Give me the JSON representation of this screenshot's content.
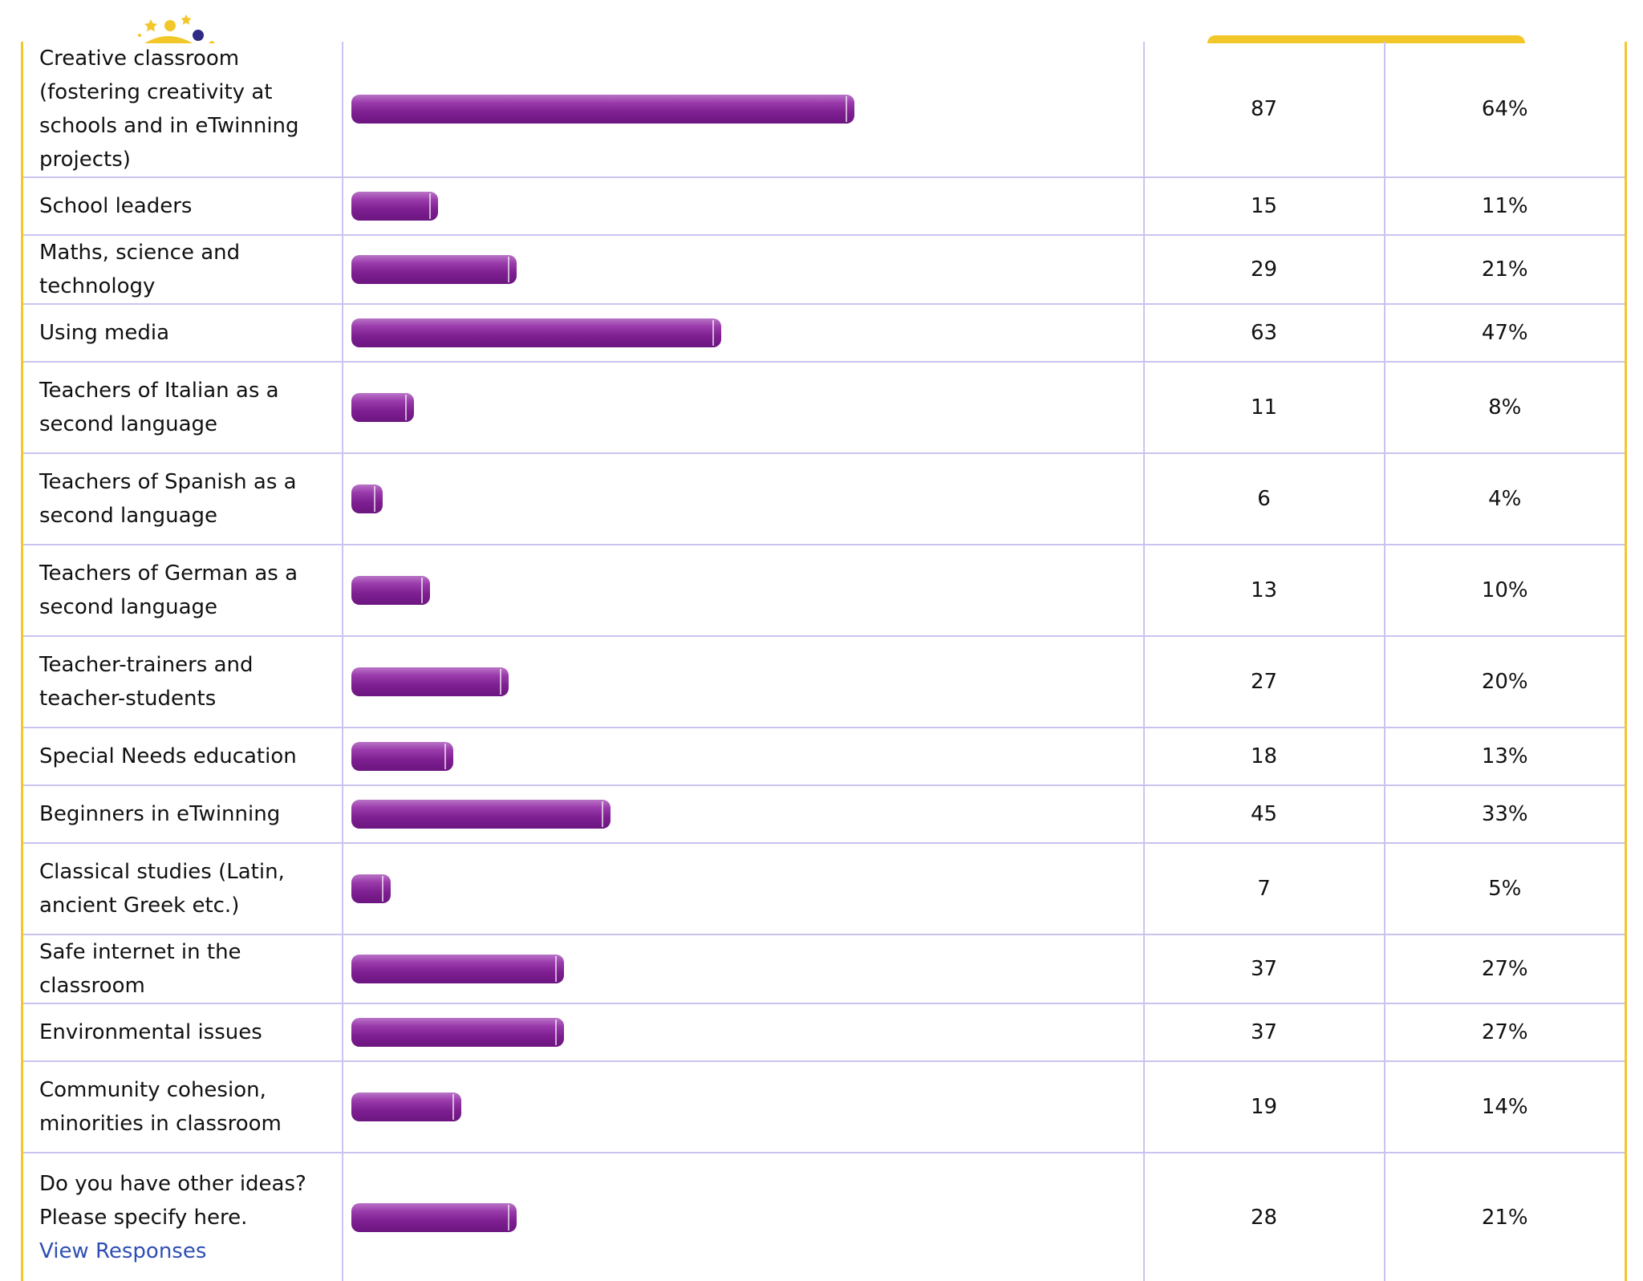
{
  "results": {
    "rows": [
      {
        "label": "Creative classroom (fostering creativity at schools and in eTwinning projects)",
        "count": "87",
        "percent": "64%",
        "fraction": 0.64
      },
      {
        "label": "School leaders",
        "count": "15",
        "percent": "11%",
        "fraction": 0.11
      },
      {
        "label": "Maths, science and technology",
        "count": "29",
        "percent": "21%",
        "fraction": 0.21
      },
      {
        "label": "Using media",
        "count": "63",
        "percent": "47%",
        "fraction": 0.47
      },
      {
        "label": "Teachers of Italian as a second language",
        "count": "11",
        "percent": "8%",
        "fraction": 0.08
      },
      {
        "label": "Teachers of Spanish as a second language",
        "count": "6",
        "percent": "4%",
        "fraction": 0.04
      },
      {
        "label": "Teachers of German as a second language",
        "count": "13",
        "percent": "10%",
        "fraction": 0.1
      },
      {
        "label": "Teacher-trainers and  teacher-students",
        "count": "27",
        "percent": "20%",
        "fraction": 0.2
      },
      {
        "label": "Special Needs education",
        "count": "18",
        "percent": "13%",
        "fraction": 0.13
      },
      {
        "label": "Beginners in eTwinning",
        "count": "45",
        "percent": "33%",
        "fraction": 0.33
      },
      {
        "label": "Classical studies (Latin, ancient Greek etc.)",
        "count": "7",
        "percent": "5%",
        "fraction": 0.05
      },
      {
        "label": "Safe internet in the classroom",
        "count": "37",
        "percent": "27%",
        "fraction": 0.27
      },
      {
        "label": "Environmental issues",
        "count": "37",
        "percent": "27%",
        "fraction": 0.27
      },
      {
        "label": "Community cohesion, minorities in classroom",
        "count": "19",
        "percent": "14%",
        "fraction": 0.14
      },
      {
        "label": "Do you have other ideas? Please specify here.",
        "count": "28",
        "percent": "21%",
        "fraction": 0.21,
        "link": "View Responses"
      }
    ]
  },
  "colors": {
    "bar": "#7e1f91",
    "frame": "#f2c72a",
    "grid": "#c9c4ef",
    "link": "#2f4fb4"
  },
  "icons": {
    "logo": "etwinning-logo-icon"
  }
}
